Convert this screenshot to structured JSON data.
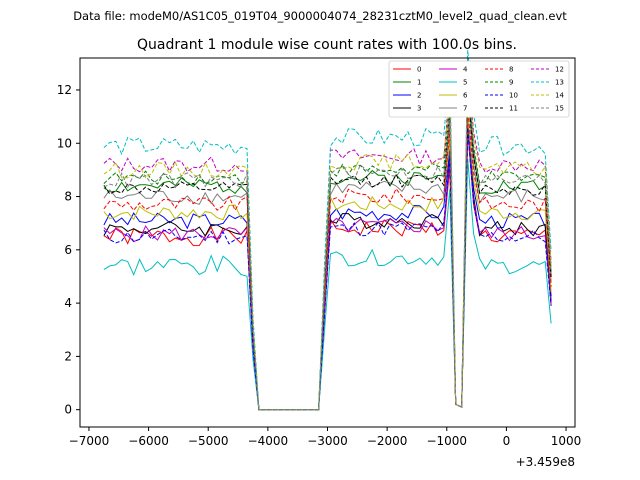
{
  "figure": {
    "suptitle": "Data file: modeM0/AS1C05_019T04_9000004074_28231cztM0_level2_quad_clean.evt"
  },
  "chart_data": {
    "type": "line",
    "title": "Quadrant 1 module wise count rates with 100.0s bins.",
    "xlabel": "",
    "ylabel": "",
    "x_offset_label": "+3.459e8",
    "xlim": [
      -7150,
      1150
    ],
    "ylim": [
      -0.65,
      13.2
    ],
    "xticks": [
      -7000,
      -6000,
      -5000,
      -4000,
      -3000,
      -2000,
      -1000,
      0,
      1000
    ],
    "xtick_labels": [
      "−7000",
      "−6000",
      "−5000",
      "−4000",
      "−3000",
      "−2000",
      "−1000",
      "0",
      "1000"
    ],
    "yticks": [
      0,
      2,
      4,
      6,
      8,
      10,
      12
    ],
    "ytick_labels": [
      "0",
      "2",
      "4",
      "6",
      "8",
      "10",
      "12"
    ],
    "grid": false,
    "legend": {
      "placement": "top-right",
      "columns": 4
    },
    "segments": [
      {
        "start": -6750,
        "step": 100,
        "count": 25
      },
      {
        "start": -4150,
        "step": 0,
        "count": 0
      },
      {
        "start": -4150,
        "step": 100,
        "count": 11
      },
      {
        "start": -3050,
        "step": 100,
        "count": 22
      },
      {
        "start": -850,
        "step": 100,
        "count": 16
      }
    ],
    "profile": {
      "gap_values_note": "values near 0 between -4150 and -3150 and at -850/-750 in data units",
      "shape": "stable plateau, drop to 0, plateau, spike near -800, plateau"
    },
    "series": [
      {
        "name": "0",
        "color": "#ff0000",
        "dash": "solid",
        "level": 6.5,
        "jitter": 0.35,
        "seed": 1
      },
      {
        "name": "1",
        "color": "#008000",
        "dash": "solid",
        "level": 8.4,
        "jitter": 0.3,
        "seed": 2
      },
      {
        "name": "2",
        "color": "#0000ff",
        "dash": "solid",
        "level": 7.1,
        "jitter": 0.3,
        "seed": 3
      },
      {
        "name": "3",
        "color": "#000000",
        "dash": "solid",
        "level": 6.8,
        "jitter": 0.3,
        "seed": 4
      },
      {
        "name": "4",
        "color": "#bf00bf",
        "dash": "solid",
        "level": 6.6,
        "jitter": 0.3,
        "seed": 5
      },
      {
        "name": "5",
        "color": "#00bfbf",
        "dash": "solid",
        "level": 5.4,
        "jitter": 0.3,
        "seed": 6
      },
      {
        "name": "6",
        "color": "#bfbf00",
        "dash": "solid",
        "level": 7.4,
        "jitter": 0.3,
        "seed": 7
      },
      {
        "name": "7",
        "color": "#808080",
        "dash": "solid",
        "level": 8.0,
        "jitter": 0.3,
        "seed": 8
      },
      {
        "name": "8",
        "color": "#ff0000",
        "dash": "dashed",
        "level": 7.7,
        "jitter": 0.3,
        "seed": 9
      },
      {
        "name": "9",
        "color": "#008000",
        "dash": "dashed",
        "level": 8.7,
        "jitter": 0.25,
        "seed": 10
      },
      {
        "name": "10",
        "color": "#0000ff",
        "dash": "dashed",
        "level": 6.5,
        "jitter": 0.3,
        "seed": 11
      },
      {
        "name": "11",
        "color": "#000000",
        "dash": "dashed",
        "level": 8.3,
        "jitter": 0.25,
        "seed": 12
      },
      {
        "name": "12",
        "color": "#bf00bf",
        "dash": "dashed",
        "level": 9.2,
        "jitter": 0.3,
        "seed": 13
      },
      {
        "name": "13",
        "color": "#00bfbf",
        "dash": "dashed",
        "level": 9.9,
        "jitter": 0.35,
        "seed": 14
      },
      {
        "name": "14",
        "color": "#bfbf00",
        "dash": "dashed",
        "level": 9.0,
        "jitter": 0.3,
        "seed": 15
      },
      {
        "name": "15",
        "color": "#808080",
        "dash": "dashed",
        "level": 8.6,
        "jitter": 0.3,
        "seed": 16
      }
    ]
  }
}
